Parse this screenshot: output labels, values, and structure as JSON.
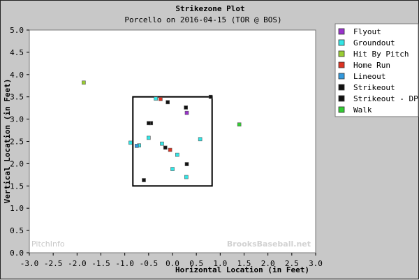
{
  "chart_data": {
    "type": "scatter",
    "title": "Strikezone Plot",
    "subtitle": "Porcello on 2016-04-15 (TOR @ BOS)",
    "xlabel": "Horizontal Location (in Feet)",
    "ylabel": "Vertical Location (in Feet)",
    "xlim": [
      -3.0,
      3.0
    ],
    "ylim": [
      0.0,
      5.0
    ],
    "x_ticks": [
      "-3.0",
      "-2.5",
      "-2.0",
      "-1.5",
      "-1.0",
      "-0.5",
      "0.0",
      "0.5",
      "1.0",
      "1.5",
      "2.0",
      "2.5",
      "3.0"
    ],
    "y_ticks": [
      "5.0",
      "4.5",
      "4.0",
      "3.5",
      "3.0",
      "2.5",
      "2.0",
      "1.5",
      "1.0",
      "0.5",
      "0.0"
    ],
    "legend_position": "right",
    "strike_zone": {
      "x": [
        -0.83,
        0.83
      ],
      "y": [
        1.5,
        3.5
      ]
    },
    "watermarks": [
      "PitchInfo",
      "BrooksBaseball.net"
    ],
    "series": [
      {
        "name": "Flyout",
        "color": "#9932cc",
        "points": [
          [
            0.3,
            3.14
          ]
        ]
      },
      {
        "name": "Groundout",
        "color": "#33e6e6",
        "points": [
          [
            -0.88,
            2.47
          ],
          [
            -0.5,
            2.58
          ],
          [
            -0.35,
            3.46
          ],
          [
            -0.22,
            2.45
          ],
          [
            -0.7,
            2.41
          ],
          [
            0.1,
            2.2
          ],
          [
            0.0,
            1.88
          ],
          [
            0.58,
            2.55
          ],
          [
            0.29,
            1.7
          ]
        ]
      },
      {
        "name": "Hit By Pitch",
        "color": "#99cc33",
        "points": [
          [
            -1.86,
            3.82
          ]
        ]
      },
      {
        "name": "Home Run",
        "color": "#dd3322",
        "points": [
          [
            -0.25,
            3.45
          ],
          [
            -0.05,
            2.31
          ]
        ]
      },
      {
        "name": "Lineout",
        "color": "#3399dd",
        "points": [
          [
            -0.75,
            2.4
          ]
        ]
      },
      {
        "name": "Strikeout",
        "color": "#111111",
        "points": [
          [
            -0.45,
            2.91
          ],
          [
            -0.5,
            2.91
          ],
          [
            -0.15,
            2.36
          ],
          [
            -0.1,
            3.38
          ],
          [
            0.28,
            3.26
          ],
          [
            0.3,
            1.99
          ],
          [
            0.8,
            3.5
          ],
          [
            -0.6,
            1.63
          ]
        ]
      },
      {
        "name": "Strikeout - DP",
        "color": "#111111",
        "points": []
      },
      {
        "name": "Walk",
        "color": "#33cc33",
        "points": [
          [
            1.4,
            2.88
          ]
        ]
      }
    ]
  }
}
